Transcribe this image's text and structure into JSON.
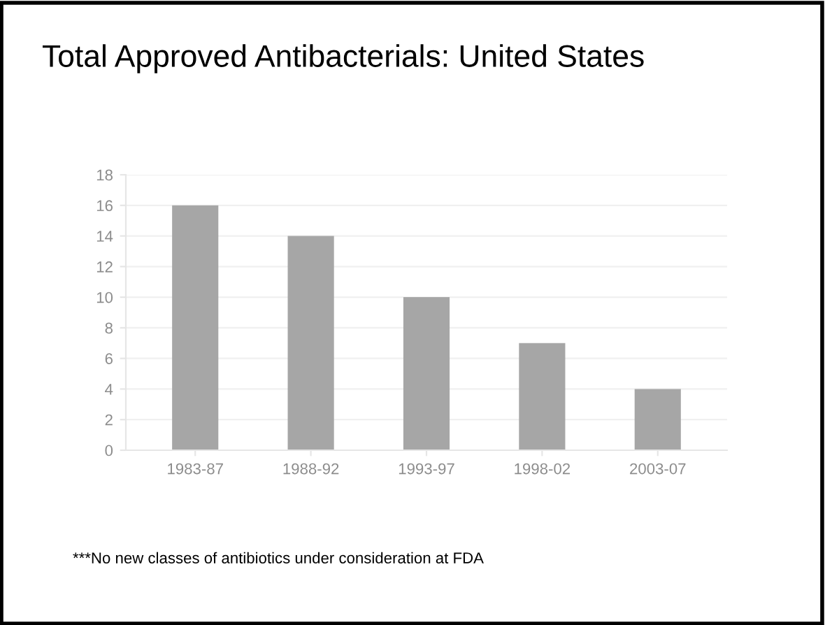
{
  "chart_data": {
    "type": "bar",
    "title": "Total Approved Antibacterials: United States",
    "categories": [
      "1983-87",
      "1988-92",
      "1993-97",
      "1998-02",
      "2003-07"
    ],
    "values": [
      16,
      14,
      10,
      7,
      4
    ],
    "color": "#a6a6a6",
    "ylim": [
      0,
      18
    ],
    "yticks": [
      0,
      2,
      4,
      6,
      8,
      10,
      12,
      14,
      16,
      18
    ],
    "grid": "y",
    "annotations": [
      "***No new classes of antibiotics under consideration at FDA"
    ]
  }
}
